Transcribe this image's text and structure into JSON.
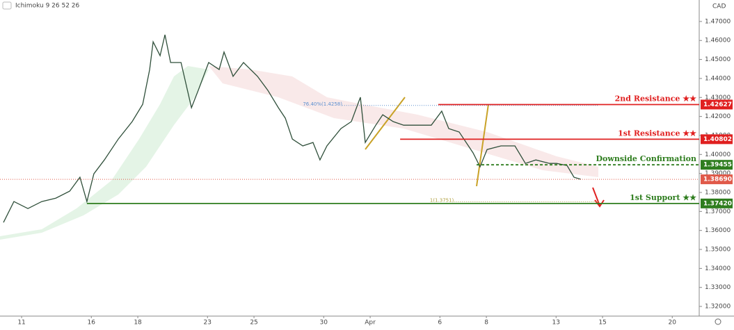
{
  "chart_data": {
    "type": "line",
    "indicator": "Ichimoku 9 26 52 26",
    "currency": "CAD",
    "x": [
      -0.78,
      -0.33,
      0.27,
      0.87,
      1.47,
      2.07,
      2.51,
      2.81,
      3.11,
      3.56,
      4.16,
      4.76,
      5.21,
      5.51,
      5.66,
      5.96,
      6.17,
      6.41,
      6.86,
      7.31,
      7.6,
      8.05,
      8.5,
      8.71,
      9.1,
      9.55,
      10.15,
      10.6,
      11.05,
      11.35,
      11.65,
      12.1,
      12.54,
      12.84,
      13.14,
      13.74,
      14.19,
      14.58,
      14.79,
      15.24,
      15.54,
      15.99,
      16.44,
      17.04,
      17.63,
      18.08,
      18.38,
      18.83,
      19.43,
      19.73,
      20.03,
      20.63,
      21.23,
      21.68,
      22.13,
      22.72,
      23.02,
      23.47,
      23.77,
      24.07
    ],
    "series": [
      {
        "color": "#2f4f3a",
        "values": [
          1.3642,
          1.3752,
          1.3715,
          1.3752,
          1.377,
          1.3807,
          1.388,
          1.3752,
          1.3898,
          1.3971,
          1.4081,
          1.4173,
          1.4264,
          1.4447,
          1.4593,
          1.452,
          1.463,
          1.4484,
          1.4484,
          1.4246,
          1.4337,
          1.4484,
          1.4447,
          1.4539,
          1.4411,
          1.4484,
          1.4411,
          1.4337,
          1.4246,
          1.4191,
          1.4081,
          1.4045,
          1.4063,
          1.3971,
          1.4045,
          1.4136,
          1.4173,
          1.4301,
          1.4063,
          1.4154,
          1.4209,
          1.4173,
          1.4154,
          1.4154,
          1.4154,
          1.4228,
          1.4136,
          1.4118,
          1.4008,
          1.3935,
          1.4026,
          1.4045,
          1.4045,
          1.3953,
          1.3971,
          1.3953,
          1.3953,
          1.3942,
          1.388,
          1.3869
        ]
      }
    ],
    "levels": [
      {
        "name": "2nd Resistance ★★",
        "value": 1.42627,
        "x_start": 17.93,
        "color": "#e02020",
        "dashed": false
      },
      {
        "name": "1st Resistance ★★",
        "value": 1.40802,
        "x_start": 16.29,
        "color": "#e02020",
        "dashed": false
      },
      {
        "name": "Downside Confirmation",
        "value": 1.39455,
        "x_start": 19.58,
        "color": "#2e7d1e",
        "dashed": true
      },
      {
        "value": 1.3869,
        "value_label": "1.38690",
        "x_start": -0.93,
        "color": "#e05a4a",
        "dashed": true
      },
      {
        "name": "1st Support ★★",
        "value": 1.3742,
        "value_label": "1.37420",
        "x_start": 2.81,
        "color": "#2e7d1e",
        "dashed": false
      }
    ],
    "annotations": [
      {
        "text": "76.40%(1.4258)",
        "value": 1.4258,
        "x": 13.8,
        "color": "#5b8fd0"
      },
      {
        "text": "1(1.3751)",
        "value": 1.3751,
        "x": 18.6,
        "color": "#b0a040"
      }
    ],
    "xlim": [
      -0.93,
      29.16
    ],
    "xticks": [
      {
        "value": 0,
        "label": "11"
      },
      {
        "value": 3,
        "label": "16"
      },
      {
        "value": 5,
        "label": "18"
      },
      {
        "value": 8,
        "label": "23"
      },
      {
        "value": 10,
        "label": "25"
      },
      {
        "value": 13,
        "label": "30"
      },
      {
        "value": 15,
        "label": "Apr"
      },
      {
        "value": 18,
        "label": "6"
      },
      {
        "value": 20,
        "label": "8"
      },
      {
        "value": 23,
        "label": "13"
      },
      {
        "value": 25,
        "label": "15"
      },
      {
        "value": 28,
        "label": "20"
      }
    ],
    "ylim": [
      1.3149,
      1.4813
    ],
    "yticks": [
      {
        "value": 1.32,
        "label": "1.32000"
      },
      {
        "value": 1.33,
        "label": "1.33000"
      },
      {
        "value": 1.34,
        "label": "1.34000"
      },
      {
        "value": 1.35,
        "label": "1.35000"
      },
      {
        "value": 1.36,
        "label": "1.36000"
      },
      {
        "value": 1.37,
        "label": "1.37000"
      },
      {
        "value": 1.38,
        "label": "1.38000"
      },
      {
        "value": 1.39,
        "label": "1.39000"
      },
      {
        "value": 1.4,
        "label": "1.40000"
      },
      {
        "value": 1.41,
        "label": "1.41000"
      },
      {
        "value": 1.42,
        "label": "1.42000"
      },
      {
        "value": 1.43,
        "label": "1.43000"
      },
      {
        "value": 1.44,
        "label": "1.44000"
      },
      {
        "value": 1.45,
        "label": "1.45000"
      },
      {
        "value": 1.46,
        "label": "1.46000"
      },
      {
        "value": 1.47,
        "label": "1.47000"
      }
    ]
  }
}
